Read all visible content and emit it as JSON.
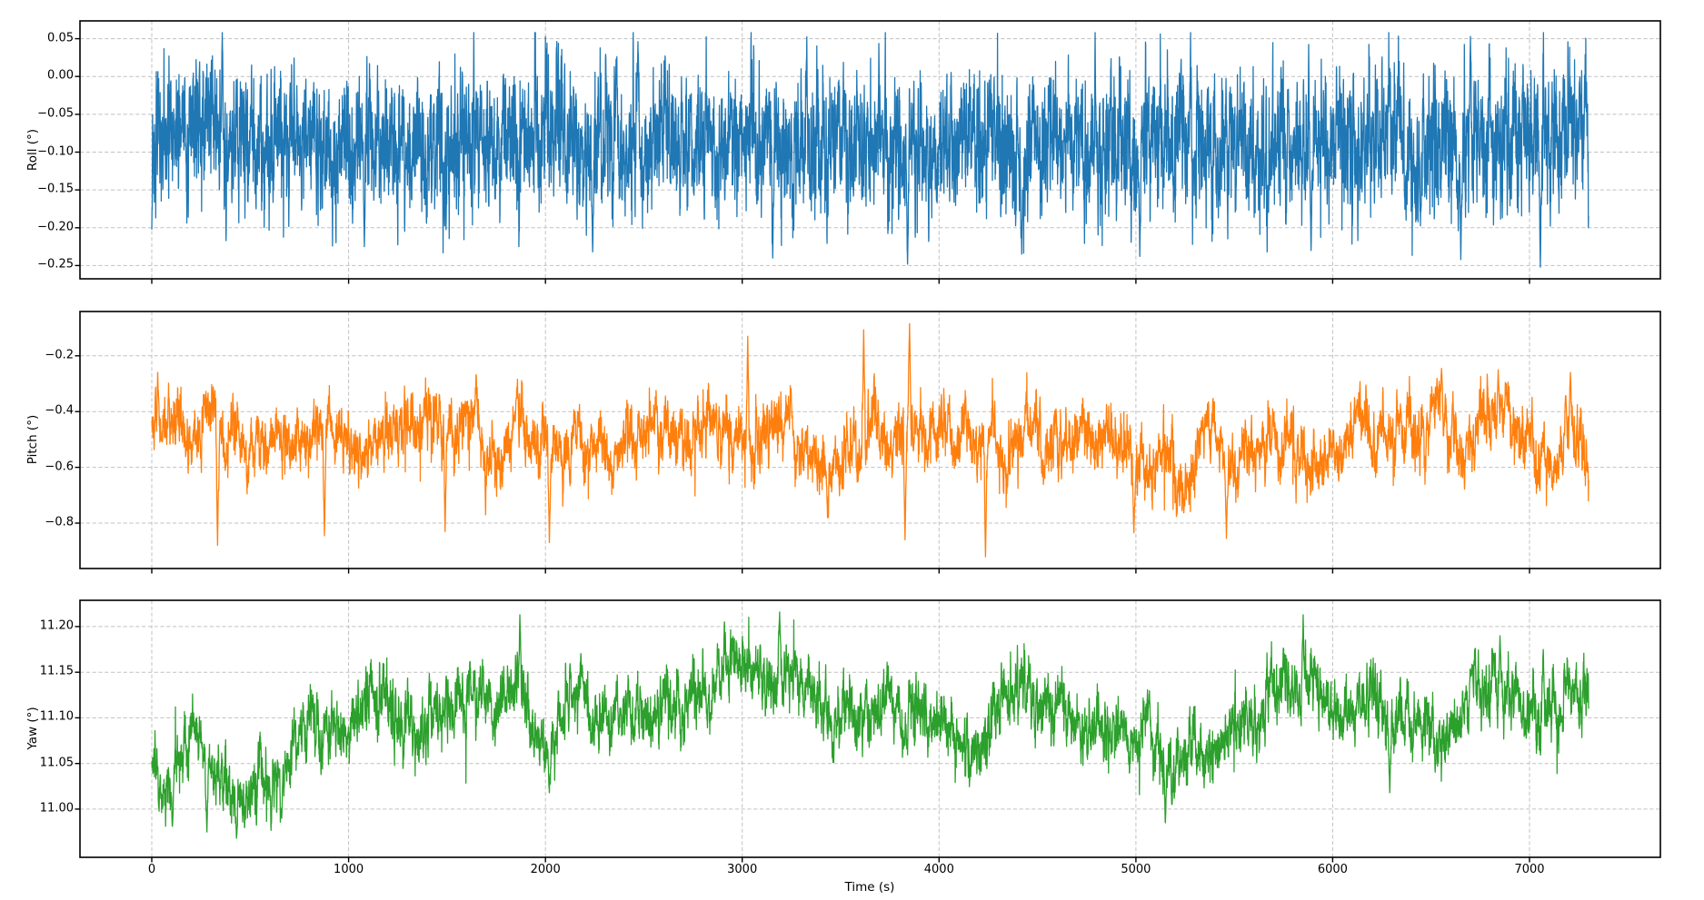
{
  "figure": {
    "title": "",
    "background": "#ffffff",
    "grid_color": "#c1c1c1",
    "spine_color": "#000000",
    "n_subplots": 3,
    "xlabel": "Time (s)"
  },
  "chart_data": [
    {
      "type": "line",
      "series_name": "Roll",
      "title": "",
      "ylabel": "Roll (°)",
      "xlabel": "",
      "color": "#1f77b4",
      "linewidth": 1.3,
      "grid": true,
      "legend": false,
      "xlim": [
        -365,
        7665
      ],
      "ylim": [
        -0.2675,
        0.0735
      ],
      "xticks": [
        0,
        1000,
        2000,
        3000,
        4000,
        5000,
        6000,
        7000
      ],
      "xtick_labels": [
        "0",
        "1000",
        "2000",
        "3000",
        "4000",
        "5000",
        "6000",
        "7000"
      ],
      "show_xtick_labels": false,
      "yticks": [
        0.05,
        0.0,
        -0.05,
        -0.1,
        -0.15,
        -0.2,
        -0.25
      ],
      "ytick_labels": [
        "0.05",
        "0.00",
        "−0.05",
        "−0.10",
        "−0.15",
        "−0.20",
        "−0.25"
      ],
      "x_start": 0,
      "x_end": 7300,
      "sample_dt": 1,
      "seed": 11,
      "trend_keypoints": [
        [
          0,
          -0.082
        ],
        [
          400,
          -0.09
        ],
        [
          900,
          -0.088
        ],
        [
          1400,
          -0.084
        ],
        [
          2000,
          -0.088
        ],
        [
          2600,
          -0.085
        ],
        [
          3200,
          -0.09
        ],
        [
          3800,
          -0.088
        ],
        [
          4400,
          -0.09
        ],
        [
          5000,
          -0.092
        ],
        [
          5600,
          -0.09
        ],
        [
          6200,
          -0.092
        ],
        [
          6800,
          -0.088
        ],
        [
          7300,
          -0.086
        ]
      ],
      "noise": {
        "slow_sigma": 0.013,
        "slow_tau": 28,
        "fast_sigma": 0.045,
        "fast_tau": 1.6,
        "whiskers": {
          "p_down": 0.006,
          "amp_down": 0.08,
          "p_up": 0.003,
          "amp_up": 0.05
        }
      },
      "extremes": [
        [
          358,
          0.058
        ],
        [
          2470,
          0.046
        ],
        [
          6700,
          0.053
        ],
        [
          1080,
          -0.225
        ],
        [
          2240,
          -0.232
        ],
        [
          3155,
          -0.24
        ],
        [
          3840,
          -0.248
        ],
        [
          4420,
          -0.235
        ],
        [
          5020,
          -0.238
        ],
        [
          5890,
          -0.23
        ],
        [
          6651,
          -0.242
        ],
        [
          7055,
          -0.252
        ]
      ],
      "clamp": [
        -0.252,
        0.058
      ],
      "stats": {
        "mean": -0.088,
        "min": -0.252,
        "max": 0.058
      }
    },
    {
      "type": "line",
      "series_name": "Pitch",
      "title": "",
      "ylabel": "Pitch (°)",
      "xlabel": "",
      "color": "#ff7f0e",
      "linewidth": 1.3,
      "grid": true,
      "legend": false,
      "xlim": [
        -365,
        7665
      ],
      "ylim": [
        -0.9629,
        -0.0411
      ],
      "xticks": [
        0,
        1000,
        2000,
        3000,
        4000,
        5000,
        6000,
        7000
      ],
      "xtick_labels": [
        "0",
        "1000",
        "2000",
        "3000",
        "4000",
        "5000",
        "6000",
        "7000"
      ],
      "show_xtick_labels": false,
      "yticks": [
        -0.2,
        -0.4,
        -0.6,
        -0.8
      ],
      "ytick_labels": [
        "−0.2",
        "−0.4",
        "−0.6",
        "−0.8"
      ],
      "x_start": 0,
      "x_end": 7300,
      "sample_dt": 1,
      "seed": 77,
      "trend_keypoints": [
        [
          0,
          -0.5
        ],
        [
          200,
          -0.5
        ],
        [
          400,
          -0.52
        ],
        [
          600,
          -0.5
        ],
        [
          800,
          -0.52
        ],
        [
          1000,
          -0.52
        ],
        [
          1200,
          -0.5
        ],
        [
          1400,
          -0.52
        ],
        [
          1600,
          -0.51
        ],
        [
          1800,
          -0.5
        ],
        [
          2000,
          -0.52
        ],
        [
          2200,
          -0.51
        ],
        [
          2400,
          -0.5
        ],
        [
          2600,
          -0.51
        ],
        [
          2800,
          -0.5
        ],
        [
          3000,
          -0.48
        ],
        [
          3200,
          -0.5
        ],
        [
          3400,
          -0.51
        ],
        [
          3600,
          -0.49
        ],
        [
          3800,
          -0.48
        ],
        [
          4000,
          -0.52
        ],
        [
          4200,
          -0.52
        ],
        [
          4400,
          -0.51
        ],
        [
          4600,
          -0.52
        ],
        [
          4800,
          -0.52
        ],
        [
          5000,
          -0.53
        ],
        [
          5200,
          -0.52
        ],
        [
          5400,
          -0.53
        ],
        [
          5600,
          -0.54
        ],
        [
          5800,
          -0.53
        ],
        [
          6000,
          -0.52
        ],
        [
          6200,
          -0.5
        ],
        [
          6400,
          -0.49
        ],
        [
          6600,
          -0.47
        ],
        [
          6800,
          -0.47
        ],
        [
          7000,
          -0.46
        ],
        [
          7150,
          -0.47
        ],
        [
          7300,
          -0.48
        ]
      ],
      "noise": {
        "slow_sigma": 0.062,
        "slow_tau": 45,
        "fast_sigma": 0.048,
        "fast_tau": 2,
        "whiskers": {
          "p_down": 0.006,
          "amp_down": 0.2,
          "p_up": 0.004,
          "amp_up": 0.12
        }
      },
      "extremes": [
        [
          30,
          -0.26
        ],
        [
          334,
          -0.88
        ],
        [
          877,
          -0.845
        ],
        [
          1490,
          -0.83
        ],
        [
          2020,
          -0.87
        ],
        [
          3028,
          -0.13
        ],
        [
          3617,
          -0.107
        ],
        [
          3827,
          -0.86
        ],
        [
          3850,
          -0.085
        ],
        [
          4236,
          -0.921
        ],
        [
          4990,
          -0.835
        ],
        [
          5460,
          -0.855
        ],
        [
          6553,
          -0.245
        ],
        [
          6841,
          -0.25
        ],
        [
          7208,
          -0.26
        ]
      ],
      "clamp": [
        -0.921,
        -0.083
      ],
      "stats": {
        "mean": -0.51,
        "min": -0.921,
        "max": -0.083
      }
    },
    {
      "type": "line",
      "series_name": "Yaw",
      "title": "",
      "ylabel": "Yaw (°)",
      "xlabel": "Time (s)",
      "color": "#2ca02c",
      "linewidth": 1.3,
      "grid": true,
      "legend": false,
      "xlim": [
        -365,
        7665
      ],
      "ylim": [
        10.9472,
        11.2288
      ],
      "xticks": [
        0,
        1000,
        2000,
        3000,
        4000,
        5000,
        6000,
        7000
      ],
      "xtick_labels": [
        "0",
        "1000",
        "2000",
        "3000",
        "4000",
        "5000",
        "6000",
        "7000"
      ],
      "show_xtick_labels": true,
      "yticks": [
        11.2,
        11.15,
        11.1,
        11.05,
        11.0
      ],
      "ytick_labels": [
        "11.20",
        "11.15",
        "11.10",
        "11.05",
        "11.00"
      ],
      "x_start": 0,
      "x_end": 7300,
      "sample_dt": 1,
      "seed": 1234,
      "trend_keypoints": [
        [
          0,
          11.045
        ],
        [
          70,
          11.03
        ],
        [
          120,
          11.05
        ],
        [
          200,
          11.07
        ],
        [
          280,
          11.04
        ],
        [
          360,
          11.045
        ],
        [
          430,
          11.02
        ],
        [
          500,
          11.055
        ],
        [
          580,
          11.05
        ],
        [
          660,
          11.055
        ],
        [
          740,
          11.06
        ],
        [
          820,
          11.075
        ],
        [
          900,
          11.085
        ],
        [
          1000,
          11.09
        ],
        [
          1100,
          11.1
        ],
        [
          1200,
          11.105
        ],
        [
          1320,
          11.11
        ],
        [
          1450,
          11.105
        ],
        [
          1570,
          11.11
        ],
        [
          1700,
          11.115
        ],
        [
          1800,
          11.13
        ],
        [
          1870,
          11.15
        ],
        [
          1940,
          11.11
        ],
        [
          2010,
          11.065
        ],
        [
          2090,
          11.1
        ],
        [
          2180,
          11.11
        ],
        [
          2300,
          11.12
        ],
        [
          2420,
          11.115
        ],
        [
          2540,
          11.11
        ],
        [
          2660,
          11.1
        ],
        [
          2780,
          11.12
        ],
        [
          2900,
          11.135
        ],
        [
          3020,
          11.14
        ],
        [
          3140,
          11.145
        ],
        [
          3240,
          11.14
        ],
        [
          3340,
          11.125
        ],
        [
          3450,
          11.11
        ],
        [
          3560,
          11.105
        ],
        [
          3680,
          11.115
        ],
        [
          3800,
          11.11
        ],
        [
          3920,
          11.1
        ],
        [
          4040,
          11.09
        ],
        [
          4160,
          11.09
        ],
        [
          4280,
          11.1
        ],
        [
          4400,
          11.11
        ],
        [
          4520,
          11.11
        ],
        [
          4640,
          11.095
        ],
        [
          4760,
          11.09
        ],
        [
          4880,
          11.085
        ],
        [
          5000,
          11.065
        ],
        [
          5100,
          11.045
        ],
        [
          5170,
          11.04
        ],
        [
          5250,
          11.065
        ],
        [
          5350,
          11.08
        ],
        [
          5450,
          11.095
        ],
        [
          5550,
          11.09
        ],
        [
          5650,
          11.1
        ],
        [
          5750,
          11.12
        ],
        [
          5850,
          11.13
        ],
        [
          5950,
          11.12
        ],
        [
          6050,
          11.11
        ],
        [
          6150,
          11.1
        ],
        [
          6250,
          11.085
        ],
        [
          6350,
          11.085
        ],
        [
          6450,
          11.09
        ],
        [
          6550,
          11.1
        ],
        [
          6650,
          11.11
        ],
        [
          6750,
          11.12
        ],
        [
          6850,
          11.13
        ],
        [
          6950,
          11.11
        ],
        [
          7050,
          11.12
        ],
        [
          7150,
          11.13
        ],
        [
          7250,
          11.125
        ],
        [
          7300,
          11.12
        ]
      ],
      "noise": {
        "slow_sigma": 0.016,
        "slow_tau": 70,
        "fast_sigma": 0.017,
        "fast_tau": 2.5,
        "whiskers": {
          "p_down": 0.004,
          "amp_down": 0.055,
          "p_up": 0.004,
          "amp_up": 0.05
        }
      },
      "extremes": [
        [
          105,
          10.982
        ],
        [
          280,
          10.975
        ],
        [
          430,
          10.968
        ],
        [
          660,
          10.99
        ],
        [
          1870,
          11.213
        ],
        [
          2020,
          11.018
        ],
        [
          3190,
          11.216
        ],
        [
          5150,
          10.985
        ],
        [
          5850,
          11.213
        ],
        [
          6290,
          11.018
        ],
        [
          6850,
          11.19
        ],
        [
          7070,
          11.175
        ]
      ],
      "clamp": [
        10.96,
        11.216
      ],
      "stats": {
        "mean": 11.1,
        "min": 10.96,
        "max": 11.216
      }
    }
  ]
}
